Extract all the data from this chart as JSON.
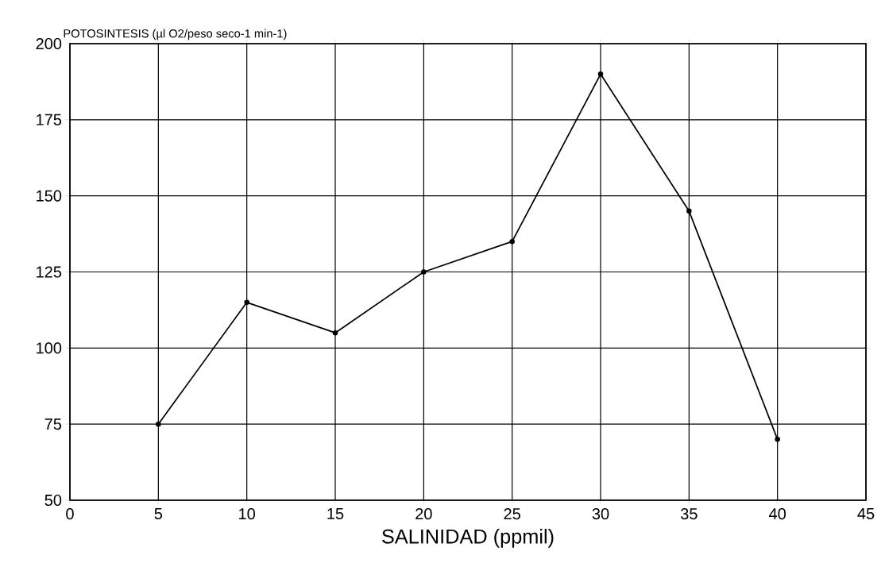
{
  "chart_data": {
    "type": "line",
    "ylabel": "POTOSINTESIS (µl O2/peso seco-1 min-1)",
    "xlabel": "SALINIDAD (ppmil)",
    "x": [
      5,
      10,
      15,
      20,
      25,
      30,
      35,
      40
    ],
    "series": [
      {
        "color": "#000000",
        "values": [
          75,
          115,
          105,
          125,
          135,
          190,
          145,
          70
        ]
      }
    ],
    "xlim": [
      0,
      45
    ],
    "xticks": [
      0,
      5,
      10,
      15,
      20,
      25,
      30,
      35,
      40,
      45
    ],
    "ylim": [
      50,
      200
    ],
    "yticks": [
      50,
      75,
      100,
      125,
      150,
      175,
      200
    ],
    "grid": true,
    "marker": "circle",
    "line_style": "solid"
  }
}
